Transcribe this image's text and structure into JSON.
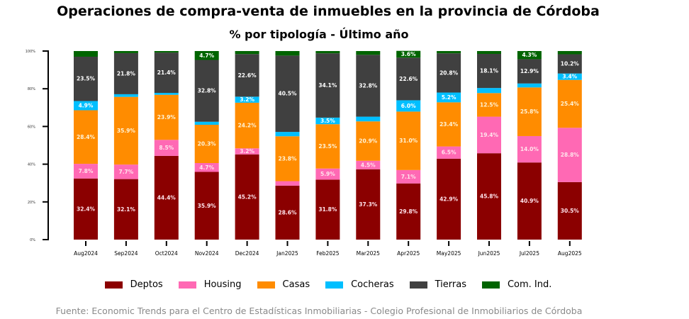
{
  "chart_data": {
    "type": "bar",
    "stacked": true,
    "percent": true,
    "title": "Operaciones de compra-venta de inmuebles en la provincia de Córdoba",
    "subtitle": "% por tipología - Último año",
    "xlabel": "",
    "ylabel": "",
    "ylim": [
      0,
      100
    ],
    "yticks": [
      "0%",
      "20%",
      "40%",
      "60%",
      "80%",
      "100%"
    ],
    "ytick_values": [
      0,
      20,
      40,
      60,
      80,
      100
    ],
    "grid": false,
    "legend_position": "bottom",
    "categories": [
      "Aug2024",
      "Sep2024",
      "Oct2024",
      "Nov2024",
      "Dec2024",
      "Jan2025",
      "Feb2025",
      "Mar2025",
      "Apr2025",
      "May2025",
      "Jun2025",
      "Jul2025",
      "Aug2025"
    ],
    "series": [
      {
        "name": "Deptos",
        "color": "#8b0000",
        "values": [
          32.4,
          32.1,
          44.4,
          35.9,
          45.2,
          28.6,
          31.8,
          37.3,
          29.8,
          42.9,
          45.8,
          40.9,
          30.5
        ],
        "labels": [
          "32.4%",
          "32.1%",
          "44.4%",
          "35.9%",
          "45.2%",
          "28.6%",
          "31.8%",
          "37.3%",
          "29.8%",
          "42.9%",
          "45.8%",
          "40.9%",
          "30.5%"
        ]
      },
      {
        "name": "Housing",
        "color": "#ff69b4",
        "values": [
          7.8,
          7.7,
          8.5,
          4.7,
          3.2,
          2.4,
          5.9,
          4.5,
          7.1,
          6.5,
          19.4,
          14.0,
          28.8
        ],
        "labels": [
          "7.8%",
          "7.7%",
          "8.5%",
          "4.7%",
          "3.2%",
          "",
          "5.9%",
          "4.5%",
          "7.1%",
          "6.5%",
          "19.4%",
          "14.0%",
          "28.8%"
        ]
      },
      {
        "name": "Casas",
        "color": "#ff8c00",
        "values": [
          28.4,
          35.9,
          23.9,
          20.3,
          24.2,
          23.8,
          23.5,
          20.9,
          31.0,
          23.4,
          12.5,
          25.8,
          25.4
        ],
        "labels": [
          "28.4%",
          "35.9%",
          "23.9%",
          "20.3%",
          "24.2%",
          "23.8%",
          "23.5%",
          "20.9%",
          "31.0%",
          "23.4%",
          "12.5%",
          "25.8%",
          "25.4%"
        ]
      },
      {
        "name": "Cocheras",
        "color": "#00bfff",
        "values": [
          4.9,
          1.4,
          1.0,
          1.6,
          3.2,
          2.3,
          3.5,
          2.5,
          6.0,
          5.2,
          2.7,
          2.1,
          3.4
        ],
        "labels": [
          "4.9%",
          "",
          "",
          "",
          "3.2%",
          "",
          "3.5%",
          "",
          "6.0%",
          "5.2%",
          "",
          "",
          "3.4%"
        ]
      },
      {
        "name": "Tierras",
        "color": "#404040",
        "values": [
          23.5,
          21.8,
          21.4,
          32.8,
          22.6,
          40.5,
          34.1,
          32.8,
          22.6,
          20.8,
          18.1,
          12.9,
          10.2
        ],
        "labels": [
          "23.5%",
          "21.8%",
          "21.4%",
          "32.8%",
          "22.6%",
          "40.5%",
          "34.1%",
          "32.8%",
          "22.6%",
          "20.8%",
          "18.1%",
          "12.9%",
          "10.2%"
        ]
      },
      {
        "name": "Com. Ind.",
        "color": "#006400",
        "values": [
          3.0,
          1.1,
          0.8,
          4.7,
          1.6,
          2.4,
          1.2,
          2.0,
          3.6,
          1.2,
          1.5,
          4.3,
          1.7
        ],
        "labels": [
          "",
          "",
          "",
          "4.7%",
          "",
          "",
          "",
          "",
          "3.6%",
          "",
          "",
          "4.3%",
          ""
        ]
      }
    ]
  },
  "header": {
    "title": "Operaciones de compra-venta de inmuebles en la provincia de Córdoba",
    "subtitle": "% por tipología - Último año"
  },
  "legend": {
    "items": [
      {
        "label": "Deptos",
        "color": "#8b0000"
      },
      {
        "label": "Housing",
        "color": "#ff69b4"
      },
      {
        "label": "Casas",
        "color": "#ff8c00"
      },
      {
        "label": "Cocheras",
        "color": "#00bfff"
      },
      {
        "label": "Tierras",
        "color": "#404040"
      },
      {
        "label": "Com. Ind.",
        "color": "#006400"
      }
    ]
  },
  "footer": {
    "source": "Fuente: Economic Trends para el Centro de Estadísticas Inmobiliarias - Colegio Profesional de Inmobiliarios de Córdoba"
  }
}
